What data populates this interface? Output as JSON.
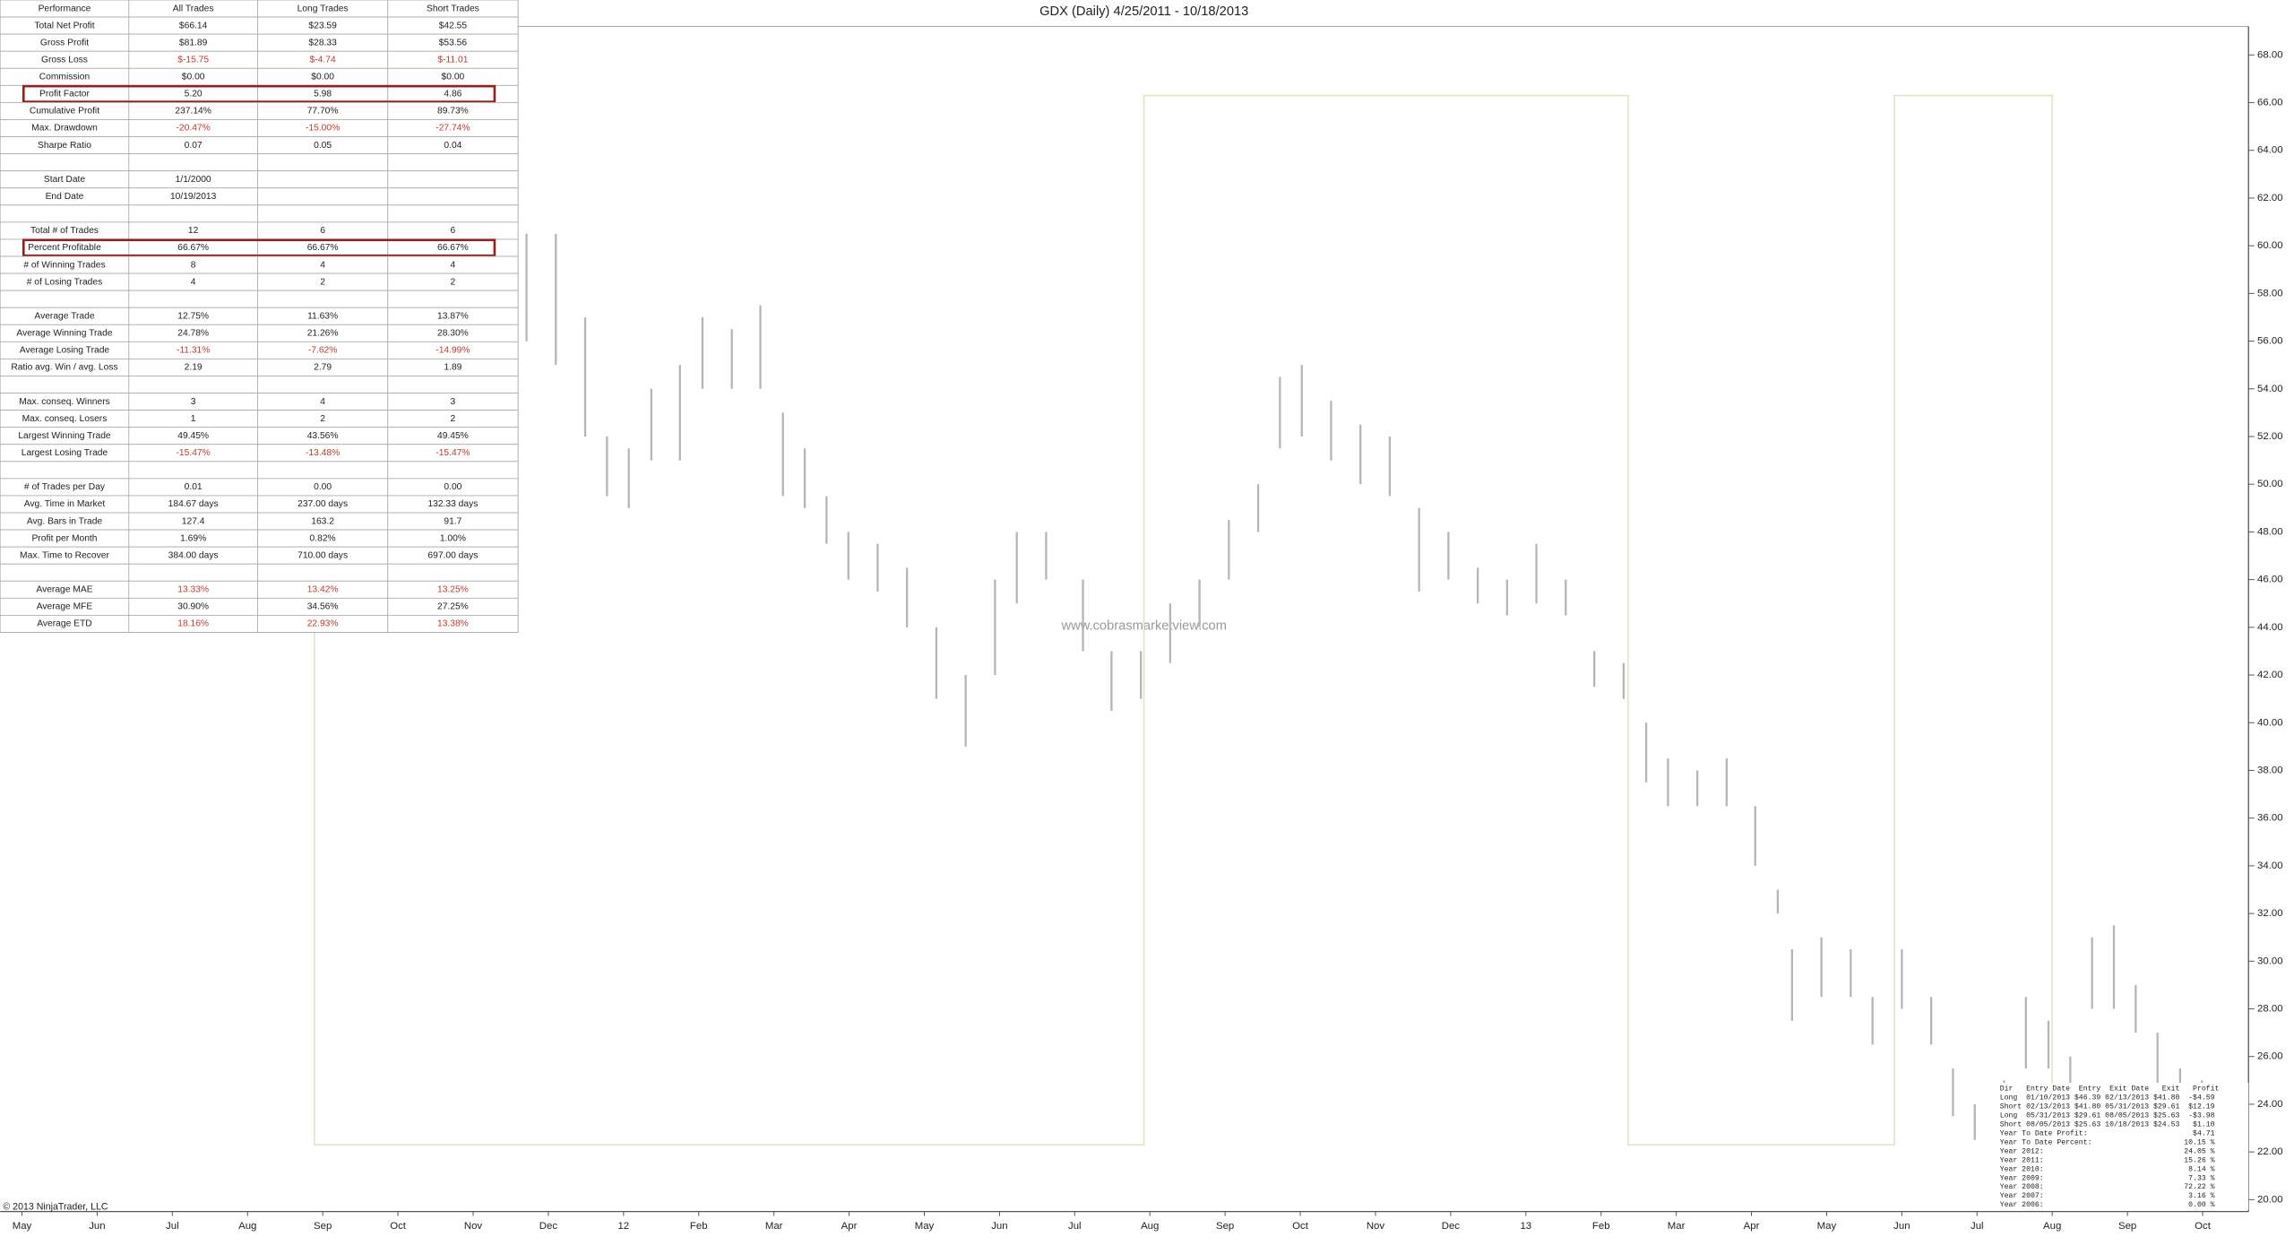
{
  "performance_table": {
    "header": [
      "Performance",
      "All Trades",
      "Long Trades",
      "Short Trades"
    ],
    "rows": [
      {
        "cells": [
          "Total Net Profit",
          "$66.14",
          "$23.59",
          "$42.55"
        ]
      },
      {
        "cells": [
          "Gross Profit",
          "$81.89",
          "$28.33",
          "$53.56"
        ]
      },
      {
        "cells": [
          "Gross Loss",
          "$-15.75",
          "$-4.74",
          "$-11.01"
        ],
        "color": "#c0392b"
      },
      {
        "cells": [
          "Commission",
          "$0.00",
          "$0.00",
          "$0.00"
        ]
      },
      {
        "cells": [
          "Profit Factor",
          "5.20",
          "5.98",
          "4.86"
        ],
        "highlighted": true
      },
      {
        "cells": [
          "Cumulative Profit",
          "237.14%",
          "77.70%",
          "89.73%"
        ]
      },
      {
        "cells": [
          "Max. Drawdown",
          "-20.47%",
          "-15.00%",
          "-27.74%"
        ],
        "color": "#c0392b"
      },
      {
        "cells": [
          "Sharpe Ratio",
          "0.07",
          "0.05",
          "0.04"
        ]
      },
      null,
      {
        "cells": [
          "Start Date",
          "1/1/2000",
          null,
          null
        ]
      },
      {
        "cells": [
          "End Date",
          "10/19/2013",
          null,
          null
        ]
      },
      null,
      {
        "cells": [
          "Total # of Trades",
          "12",
          "6",
          "6"
        ]
      },
      {
        "cells": [
          "Percent Profitable",
          "66.67%",
          "66.67%",
          "66.67%"
        ],
        "highlighted": true
      },
      {
        "cells": [
          "# of Winning Trades",
          "8",
          "4",
          "4"
        ]
      },
      {
        "cells": [
          "# of Losing Trades",
          "4",
          "2",
          "2"
        ]
      },
      null,
      {
        "cells": [
          "Average Trade",
          "12.75%",
          "11.63%",
          "13.87%"
        ]
      },
      {
        "cells": [
          "Average Winning Trade",
          "24.78%",
          "21.26%",
          "28.30%"
        ]
      },
      {
        "cells": [
          "Average Losing Trade",
          "-11.31%",
          "-7.62%",
          "-14.99%"
        ],
        "color": "#c0392b"
      },
      {
        "cells": [
          "Ratio avg. Win / avg. Loss",
          "2.19",
          "2.79",
          "1.89"
        ]
      },
      null,
      {
        "cells": [
          "Max. conseq. Winners",
          "3",
          "4",
          "3"
        ]
      },
      {
        "cells": [
          "Max. conseq. Losers",
          "1",
          "2",
          "2"
        ]
      },
      {
        "cells": [
          "Largest Winning Trade",
          "49.45%",
          "43.56%",
          "49.45%"
        ]
      },
      {
        "cells": [
          "Largest Losing Trade",
          "-15.47%",
          "-13.48%",
          "-15.47%"
        ],
        "color": "#c0392b"
      },
      null,
      {
        "cells": [
          "# of Trades per Day",
          "0.01",
          "0.00",
          "0.00"
        ]
      },
      {
        "cells": [
          "Avg. Time in Market",
          "184.67 days",
          "237.00 days",
          "132.33 days"
        ]
      },
      {
        "cells": [
          "Avg. Bars in Trade",
          "127.4",
          "163.2",
          "91.7"
        ]
      },
      {
        "cells": [
          "Profit per Month",
          "1.69%",
          "0.82%",
          "1.00%"
        ]
      },
      {
        "cells": [
          "Max. Time to Recover",
          "384.00 days",
          "710.00 days",
          "697.00 days"
        ]
      },
      null,
      {
        "cells": [
          "Average MAE",
          "13.33%",
          "13.42%",
          "13.25%"
        ],
        "color": "#c0392b"
      },
      {
        "cells": [
          "Average MFE",
          "30.90%",
          "34.56%",
          "27.25%"
        ]
      },
      {
        "cells": [
          "Average ETD",
          "18.16%",
          "22.93%",
          "13.38%"
        ],
        "color": "#c0392b"
      }
    ]
  },
  "trade_summary": {
    "lines": [
      "Dir   Entry Date  Entry  Exit Date   Exit   Profit",
      "Long  01/10/2013 $46.39 02/13/2013 $41.80  -$4.59",
      "Short 02/13/2013 $41.80 05/31/2013 $29.61  $12.19",
      "Long  05/31/2013 $29.61 08/05/2013 $25.63  -$3.98",
      "Short 08/05/2013 $25.63 10/18/2013 $24.53   $1.10",
      "Year To Date Profit:                        $4.71",
      "Year To Date Percent:                     10.15 %",
      "Year 2012:                                24.05 %",
      "Year 2011:                                15.26 %",
      "Year 2010:                                 8.14 %",
      "Year 2009:                                 7.33 %",
      "Year 2008:                                72.22 %",
      "Year 2007:                                 3.16 %",
      "Year 2006:                                 0.00 %"
    ]
  },
  "chart_data": {
    "type": "range_bar",
    "title": "GDX (Daily)  4/25/2011 - 10/18/2013",
    "watermark": "www.cobrasmarketview.com",
    "copyright": "© 2013 NinjaTrader, LLC",
    "color": "#b5b5b5",
    "xlim": [
      -0.29,
      29.61
    ],
    "ylim": [
      19.5,
      69.2
    ],
    "xticks": [
      {
        "value": 0,
        "label": "May"
      },
      {
        "value": 1,
        "label": "Jun"
      },
      {
        "value": 2,
        "label": "Jul"
      },
      {
        "value": 3,
        "label": "Aug"
      },
      {
        "value": 4,
        "label": "Sep"
      },
      {
        "value": 5,
        "label": "Oct"
      },
      {
        "value": 6,
        "label": "Nov"
      },
      {
        "value": 7,
        "label": "Dec"
      },
      {
        "value": 8,
        "label": "12"
      },
      {
        "value": 9,
        "label": "Feb"
      },
      {
        "value": 10,
        "label": "Mar"
      },
      {
        "value": 11,
        "label": "Apr"
      },
      {
        "value": 12,
        "label": "May"
      },
      {
        "value": 13,
        "label": "Jun"
      },
      {
        "value": 14,
        "label": "Jul"
      },
      {
        "value": 15,
        "label": "Aug"
      },
      {
        "value": 16,
        "label": "Sep"
      },
      {
        "value": 17,
        "label": "Oct"
      },
      {
        "value": 18,
        "label": "Nov"
      },
      {
        "value": 19,
        "label": "Dec"
      },
      {
        "value": 20,
        "label": "13"
      },
      {
        "value": 21,
        "label": "Feb"
      },
      {
        "value": 22,
        "label": "Mar"
      },
      {
        "value": 23,
        "label": "Apr"
      },
      {
        "value": 24,
        "label": "May"
      },
      {
        "value": 25,
        "label": "Jun"
      },
      {
        "value": 26,
        "label": "Jul"
      },
      {
        "value": 27,
        "label": "Aug"
      },
      {
        "value": 28,
        "label": "Sep"
      },
      {
        "value": 29,
        "label": "Oct"
      }
    ],
    "yticks": [
      {
        "value": 20,
        "label": "20.00"
      },
      {
        "value": 22,
        "label": "22.00"
      },
      {
        "value": 24,
        "label": "24.00"
      },
      {
        "value": 26,
        "label": "26.00"
      },
      {
        "value": 28,
        "label": "28.00"
      },
      {
        "value": 30,
        "label": "30.00"
      },
      {
        "value": 32,
        "label": "32.00"
      },
      {
        "value": 34,
        "label": "34.00"
      },
      {
        "value": 36,
        "label": "36.00"
      },
      {
        "value": 38,
        "label": "38.00"
      },
      {
        "value": 40,
        "label": "40.00"
      },
      {
        "value": 42,
        "label": "42.00"
      },
      {
        "value": 44,
        "label": "44.00"
      },
      {
        "value": 46,
        "label": "46.00"
      },
      {
        "value": 48,
        "label": "48.00"
      },
      {
        "value": 50,
        "label": "50.00"
      },
      {
        "value": 52,
        "label": "52.00"
      },
      {
        "value": 54,
        "label": "54.00"
      },
      {
        "value": 56,
        "label": "56.00"
      },
      {
        "value": 58,
        "label": "58.00"
      },
      {
        "value": 60,
        "label": "60.00"
      },
      {
        "value": 62,
        "label": "62.00"
      },
      {
        "value": 64,
        "label": "64.00"
      },
      {
        "value": 66,
        "label": "66.00"
      },
      {
        "value": 68,
        "label": "68.00"
      }
    ],
    "x": [
      6.71,
      7.1,
      7.49,
      7.78,
      8.07,
      8.37,
      8.75,
      9.05,
      9.44,
      9.82,
      10.12,
      10.41,
      10.7,
      10.99,
      11.38,
      11.77,
      12.16,
      12.55,
      12.94,
      13.23,
      13.62,
      14.11,
      14.49,
      14.88,
      15.27,
      15.66,
      16.05,
      16.44,
      16.73,
      17.02,
      17.41,
      17.8,
      18.19,
      18.58,
      18.97,
      19.36,
      19.75,
      20.14,
      20.53,
      20.91,
      21.3,
      21.6,
      21.89,
      22.28,
      22.67,
      23.05,
      23.35,
      23.54,
      23.93,
      24.32,
      24.61,
      25.0,
      25.39,
      25.68,
      25.97,
      26.36,
      26.65,
      26.95,
      27.24,
      27.53,
      27.82,
      28.11,
      28.4,
      28.7,
      28.99,
      29.38
    ],
    "high": [
      60.5,
      60.5,
      57,
      52,
      51.5,
      54,
      55,
      57,
      56.5,
      57.5,
      53,
      51.5,
      49.5,
      48,
      47.5,
      46.5,
      44,
      42,
      46,
      48,
      48,
      46,
      43,
      43,
      45,
      46,
      48.5,
      50,
      54.5,
      55,
      53.5,
      52.5,
      52,
      49,
      48,
      46.5,
      46,
      47.5,
      46,
      43,
      42.5,
      40,
      38.5,
      38,
      38.5,
      36.5,
      33,
      30.5,
      31,
      30.5,
      28.5,
      30.5,
      28.5,
      25.5,
      24,
      25,
      28.5,
      27.5,
      26,
      31,
      31.5,
      29,
      27,
      25.5,
      25,
      24.5
    ],
    "low": [
      56,
      55,
      52,
      49.5,
      49,
      51,
      51,
      54,
      54,
      54,
      49.5,
      49,
      47.5,
      46,
      45.5,
      44,
      41,
      39,
      42,
      45,
      46,
      43,
      40.5,
      41,
      42.5,
      44,
      46,
      48,
      51.5,
      52,
      51,
      50,
      49.5,
      45.5,
      46,
      45,
      44.5,
      45,
      44.5,
      41.5,
      41,
      37.5,
      36.5,
      36.5,
      36.5,
      34,
      32,
      27.5,
      28.5,
      28.5,
      26.5,
      28,
      26.5,
      23.5,
      22.5,
      23.5,
      25.5,
      25.5,
      24,
      28,
      28,
      27,
      24.5,
      24,
      23.5,
      23.5
    ],
    "position_line": {
      "color": "#dfe6c4",
      "x": [
        3.89,
        3.89,
        14.92,
        14.92,
        21.36,
        21.36,
        24.9,
        24.9,
        27.0,
        27.0
      ],
      "values": [
        66.3,
        22.3,
        22.3,
        66.3,
        66.3,
        22.3,
        22.3,
        66.3,
        66.3,
        22.3
      ]
    }
  }
}
